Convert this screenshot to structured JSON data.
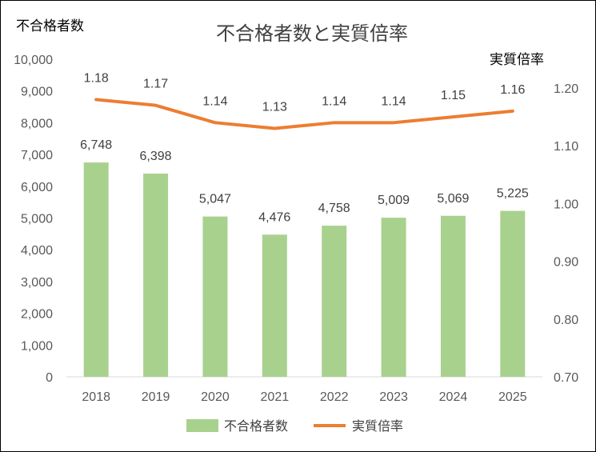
{
  "chart_data": {
    "type": "bar",
    "title": "不合格者数と実質倍率",
    "ylabel": "不合格者数",
    "y2label": "実質倍率",
    "categories": [
      "2018",
      "2019",
      "2020",
      "2021",
      "2022",
      "2023",
      "2024",
      "2025"
    ],
    "series": [
      {
        "name": "不合格者数",
        "type": "bar",
        "axis": "left",
        "color": "#a9d18e",
        "values": [
          6748,
          6398,
          5047,
          4476,
          4758,
          5009,
          5069,
          5225
        ],
        "labels": [
          "6,748",
          "6,398",
          "5,047",
          "4,476",
          "4,758",
          "5,009",
          "5,069",
          "5,225"
        ]
      },
      {
        "name": "実質倍率",
        "type": "line",
        "axis": "right",
        "color": "#ed7d31",
        "values": [
          1.18,
          1.17,
          1.14,
          1.13,
          1.14,
          1.14,
          1.15,
          1.16
        ],
        "labels": [
          "1.18",
          "1.17",
          "1.14",
          "1.13",
          "1.14",
          "1.14",
          "1.15",
          "1.16"
        ]
      }
    ],
    "ylim": [
      0,
      10000
    ],
    "y2lim": [
      0.7,
      1.2
    ],
    "yticks": [
      "0",
      "1,000",
      "2,000",
      "3,000",
      "4,000",
      "5,000",
      "6,000",
      "7,000",
      "8,000",
      "9,000",
      "10,000"
    ],
    "y2ticks": [
      "0.70",
      "0.80",
      "0.90",
      "1.00",
      "1.10",
      "1.20"
    ],
    "grid": false,
    "legend": "bottom"
  }
}
